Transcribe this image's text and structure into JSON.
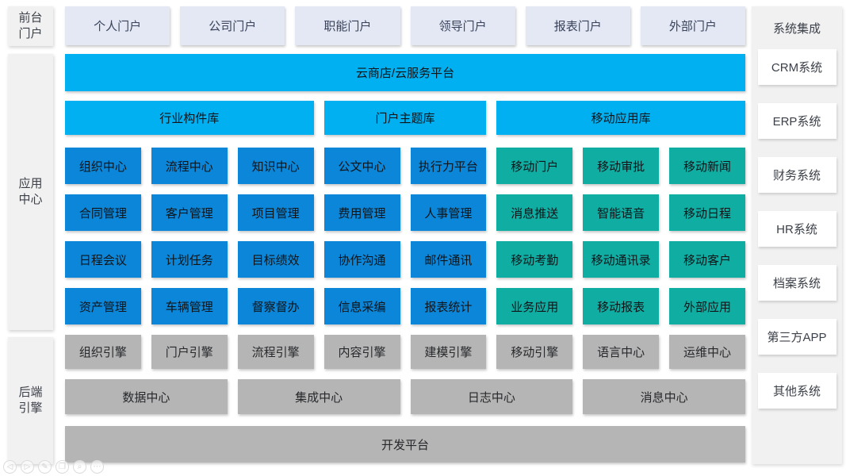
{
  "colors": {
    "header_cyan": "#00b0f0",
    "app_blue": "#0b86d8",
    "mobile_teal": "#10ada2",
    "engine_gray": "#b5b5b5",
    "panel_gray": "#f1f1f2",
    "portal_button": "#e3e8f4"
  },
  "left_rail": {
    "front_portal": "前台\n门户",
    "app_center": "应用\n中心",
    "backend_engine": "后端\n引擎"
  },
  "portals": [
    "个人门户",
    "公司门户",
    "职能门户",
    "领导门户",
    "报表门户",
    "外部门户"
  ],
  "cloud_bar": "云商店/云服务平台",
  "libraries": [
    "行业构件库",
    "门户主题库",
    "移动应用库"
  ],
  "grid": {
    "rows": [
      {
        "cells": [
          "组织中心",
          "流程中心",
          "知识中心",
          "公文中心",
          "执行力平台",
          "移动门户",
          "移动审批",
          "移动新闻"
        ]
      },
      {
        "cells": [
          "合同管理",
          "客户管理",
          "项目管理",
          "费用管理",
          "人事管理",
          "消息推送",
          "智能语音",
          "移动日程"
        ]
      },
      {
        "cells": [
          "日程会议",
          "计划任务",
          "目标绩效",
          "协作沟通",
          "邮件通讯",
          "移动考勤",
          "移动通讯录",
          "移动客户"
        ]
      },
      {
        "cells": [
          "资产管理",
          "车辆管理",
          "督察督办",
          "信息采编",
          "报表统计",
          "业务应用",
          "移动报表",
          "外部应用"
        ]
      }
    ]
  },
  "engines": [
    "组织引擎",
    "门户引擎",
    "流程引擎",
    "内容引擎",
    "建模引擎",
    "移动引擎",
    "语言中心",
    "运维中心"
  ],
  "centers": [
    "数据中心",
    "集成中心",
    "日志中心",
    "消息中心"
  ],
  "dev_platform": "开发平台",
  "sidebar": {
    "title": "系统集成",
    "items": [
      "CRM系统",
      "ERP系统",
      "财务系统",
      "HR系统",
      "档案系统",
      "第三方APP",
      "其他系统"
    ]
  },
  "controls": [
    {
      "name": "previous",
      "glyph": "◁"
    },
    {
      "name": "next",
      "glyph": "▷"
    },
    {
      "name": "pen",
      "glyph": "✎"
    },
    {
      "name": "copy",
      "glyph": "❐"
    },
    {
      "name": "magnifier",
      "glyph": "⌕"
    },
    {
      "name": "more",
      "glyph": "⋯"
    }
  ]
}
